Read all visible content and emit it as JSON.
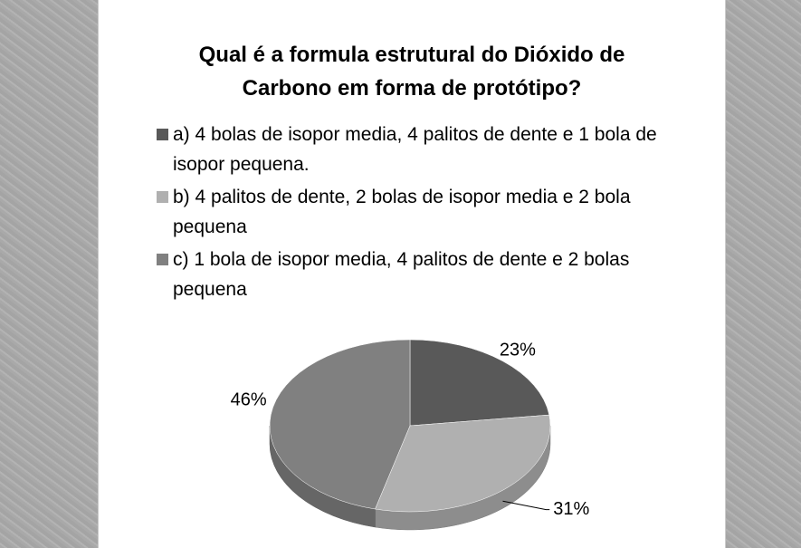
{
  "chart_data": {
    "type": "pie",
    "title": "Qual é a formula estrutural do Dióxido de Carbono em forma de protótipo?",
    "categories": [
      "a) 4 bolas de isopor media, 4 palitos de dente e 1 bola de isopor pequena.",
      "b) 4 palitos de dente, 2 bolas de isopor media e 2 bola pequena",
      "c) 1 bola de isopor media, 4 palitos de dente e 2 bolas pequena"
    ],
    "values": [
      23,
      31,
      46
    ],
    "value_labels": [
      "23%",
      "31%",
      "46%"
    ],
    "colors": [
      "#595959",
      "#b0b0b0",
      "#808080"
    ],
    "legend": "top"
  }
}
